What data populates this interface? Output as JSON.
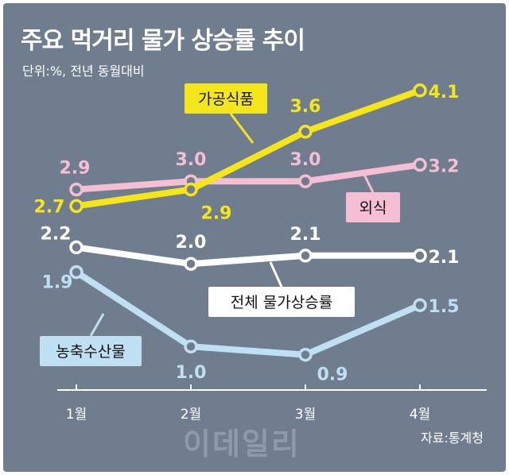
{
  "title": "주요 먹거리 물가 상승률 추이",
  "subtitle": "단위:%, 전년 동월대비",
  "source": "자료:통계청",
  "watermark": "이데일리",
  "colors": {
    "background": "#6f7d8f",
    "processed_food": "#f5e61c",
    "dining_out": "#f4bfd3",
    "overall": "#ffffff",
    "agri_livestock_fish": "#bfe0f2"
  },
  "chart_data": {
    "type": "line",
    "categories": [
      "1월",
      "2월",
      "3월",
      "4월"
    ],
    "grid": false,
    "series": [
      {
        "name": "가공식품",
        "values": [
          2.7,
          2.9,
          3.6,
          4.1
        ]
      },
      {
        "name": "외식",
        "values": [
          2.9,
          3.0,
          3.0,
          3.2
        ]
      },
      {
        "name": "전체 물가상승률",
        "values": [
          2.2,
          2.0,
          2.1,
          2.1
        ]
      },
      {
        "name": "농축수산물",
        "values": [
          1.9,
          1.0,
          0.9,
          1.5
        ]
      }
    ]
  }
}
